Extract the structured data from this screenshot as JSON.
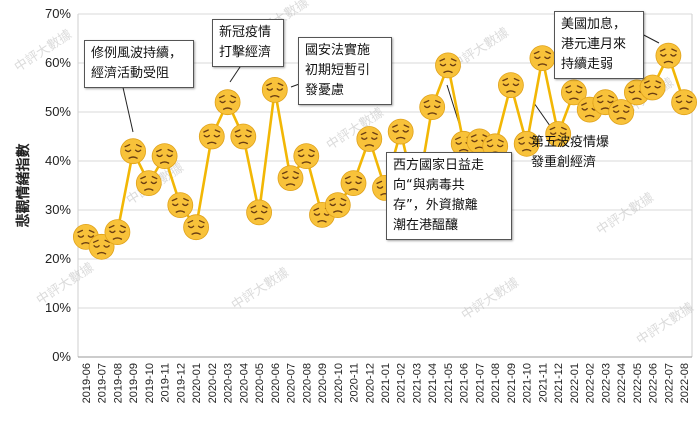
{
  "chart_data": {
    "type": "line",
    "ylabel": "悲觀情緒指數",
    "ylim": [
      0,
      70
    ],
    "yticks": [
      "0%",
      "10%",
      "20%",
      "30%",
      "40%",
      "50%",
      "60%",
      "70%"
    ],
    "grid": "horizontal",
    "marker": "pensive-face-emoji",
    "categories": [
      "2019-06",
      "2019-07",
      "2019-08",
      "2019-09",
      "2019-10",
      "2019-11",
      "2019-12",
      "2020-01",
      "2020-02",
      "2020-03",
      "2020-04",
      "2020-05",
      "2020-06",
      "2020-07",
      "2020-08",
      "2020-09",
      "2020-10",
      "2020-11",
      "2020-12",
      "2021-01",
      "2021-02",
      "2021-03",
      "2021-04",
      "2021-05",
      "2021-06",
      "2021-07",
      "2021-08",
      "2021-09",
      "2021-10",
      "2021-11",
      "2021-12",
      "2022-01",
      "2022-02",
      "2022-03",
      "2022-04",
      "2022-05",
      "2022-06",
      "2022-07",
      "2022-08"
    ],
    "series": [
      {
        "values": [
          24.5,
          22.5,
          25.5,
          42.0,
          35.5,
          41.0,
          31.0,
          26.5,
          45.0,
          52.0,
          45.0,
          29.5,
          54.5,
          36.5,
          41.0,
          29.0,
          31.0,
          35.5,
          44.5,
          34.5,
          46.0,
          32.0,
          51.0,
          59.5,
          43.5,
          44.0,
          43.0,
          55.5,
          43.5,
          61.0,
          45.5,
          54.0,
          50.5,
          52.0,
          50.0,
          54.0,
          55.0,
          61.5,
          52.0
        ]
      }
    ],
    "colors": {
      "line": "#f2b705",
      "marker_fill": "#f8c23a",
      "grid": "#d9d9d9"
    },
    "annotations": [
      {
        "text": "修例風波持續，\n經濟活動受阻",
        "category": "2019-09"
      },
      {
        "text": "新冠疫情\n打擊經濟",
        "category": "2020-03"
      },
      {
        "text": "國安法實施\n初期短暫引\n發憂慮",
        "category": "2020-06"
      },
      {
        "text": "西方國家日益走\n向“與病毒共\n存”，外資撤離\n潮在港醞釀",
        "category": "2021-05"
      },
      {
        "text": "第五波疫情爆\n發重創經濟",
        "category": "2021-11"
      },
      {
        "text": "美國加息，\n港元連月來\n持續走弱",
        "category": "2022-07"
      }
    ],
    "watermark": "中評大數據"
  }
}
